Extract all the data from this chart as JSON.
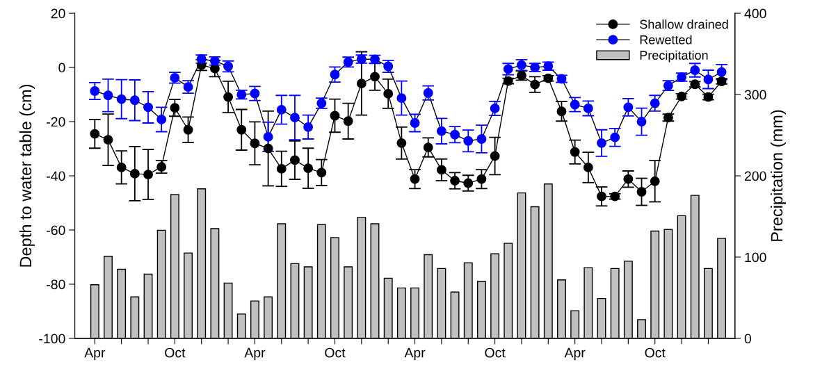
{
  "chart_data": {
    "type": "line",
    "ylabel": "Depth to water table (cm)",
    "y2label": "Precipitation (mm)",
    "categories": [
      "Apr",
      null,
      null,
      null,
      null,
      null,
      "Oct",
      null,
      null,
      null,
      null,
      null,
      "Apr",
      null,
      null,
      null,
      null,
      null,
      "Oct",
      null,
      null,
      null,
      null,
      null,
      "Apr",
      null,
      null,
      null,
      null,
      null,
      "Oct",
      null,
      null,
      null,
      null,
      null,
      "Apr",
      null,
      null,
      null,
      null,
      null,
      "Oct",
      null,
      null,
      null,
      null,
      null
    ],
    "ylim": [
      -100,
      20
    ],
    "yticks": [
      -100,
      -80,
      -60,
      -40,
      -20,
      0,
      20
    ],
    "y2lim": [
      0,
      400
    ],
    "y2ticks": [
      0,
      100,
      200,
      300,
      400
    ],
    "marker": "circle",
    "line_style": "solid",
    "grid": false,
    "legend": "top right",
    "series": [
      {
        "name": "Precipitation",
        "type": "bar",
        "axis": "y2",
        "color": "#c0c0c0",
        "values": [
          66,
          101,
          85,
          51,
          79,
          133,
          177,
          105,
          184,
          135,
          68,
          30,
          46,
          51,
          141,
          92,
          88,
          140,
          124,
          88,
          149,
          141,
          74,
          62,
          62,
          103,
          86,
          57,
          93,
          70,
          104,
          117,
          179,
          162,
          190,
          72,
          34,
          87,
          49,
          86,
          95,
          23,
          132,
          134,
          151,
          176,
          86,
          123
        ]
      },
      {
        "name": "Shallow drained",
        "color": "#000000",
        "values": [
          -24.5,
          -26.7,
          -36.9,
          -39.2,
          -39.5,
          -36.7,
          -14.9,
          -23,
          0.9,
          -0.4,
          -10.9,
          -23,
          -28,
          -29.9,
          -37.4,
          -34.2,
          -37.2,
          -38.8,
          -17.8,
          -19.8,
          -5.9,
          -3.4,
          -9.7,
          -27.9,
          -41.2,
          -29.5,
          -37.8,
          -41.8,
          -42.7,
          -41.2,
          -32.7,
          -5,
          -3,
          -6.3,
          -4,
          -16.2,
          -31.2,
          -36.9,
          -47.6,
          -47.6,
          -41.2,
          -45.9,
          -42,
          -18.5,
          -10.7,
          -6.2,
          -10.9,
          -5.1
        ],
        "errors": [
          5.3,
          9.5,
          6.1,
          10,
          9.2,
          2.3,
          3.1,
          4.7,
          2,
          3,
          5.8,
          7.5,
          7.9,
          13.8,
          6.5,
          7.1,
          7.4,
          4.8,
          6.1,
          6.6,
          11.7,
          5,
          5.4,
          5.9,
          3.5,
          3.5,
          4,
          3,
          2.9,
          3.5,
          6.9,
          1,
          1.7,
          2.9,
          1,
          3.6,
          4.4,
          5.6,
          3.5,
          1,
          3,
          5,
          7.6,
          1.3,
          1,
          1,
          1,
          1
        ]
      },
      {
        "name": "Rewetted",
        "color": "#0000ff",
        "values": [
          -8.7,
          -10.3,
          -11.7,
          -12.1,
          -14.7,
          -19.2,
          -3.8,
          -7.2,
          3.1,
          2.4,
          0.4,
          -10,
          -9.6,
          -25.6,
          -15.6,
          -18.5,
          -22,
          -13.2,
          -2.6,
          2,
          3.1,
          3,
          0.4,
          -11.3,
          -20.5,
          -9.4,
          -23.5,
          -24.8,
          -27.1,
          -26.4,
          -15.1,
          -0.6,
          0.9,
          0,
          0.5,
          -4.2,
          -13.7,
          -15.1,
          -27.9,
          -25.8,
          -14.7,
          -20,
          -13.2,
          -6.7,
          -3.6,
          -1,
          -4.4,
          -1.7
        ],
        "errors": [
          3.1,
          6,
          7.2,
          7.5,
          5.8,
          4.5,
          2,
          2.3,
          1.5,
          1.5,
          2,
          1.6,
          2.6,
          5.4,
          5.3,
          8.2,
          4.4,
          1.9,
          2.8,
          1.8,
          1.5,
          1.5,
          2.2,
          6.3,
          3.2,
          2.6,
          4.7,
          3,
          4,
          5.1,
          2.6,
          2.1,
          2,
          1.5,
          1.5,
          1.3,
          2.6,
          2.7,
          4.9,
          3.3,
          3.2,
          5,
          2.9,
          1.8,
          1.5,
          2.5,
          3.4,
          2.8
        ]
      }
    ]
  }
}
